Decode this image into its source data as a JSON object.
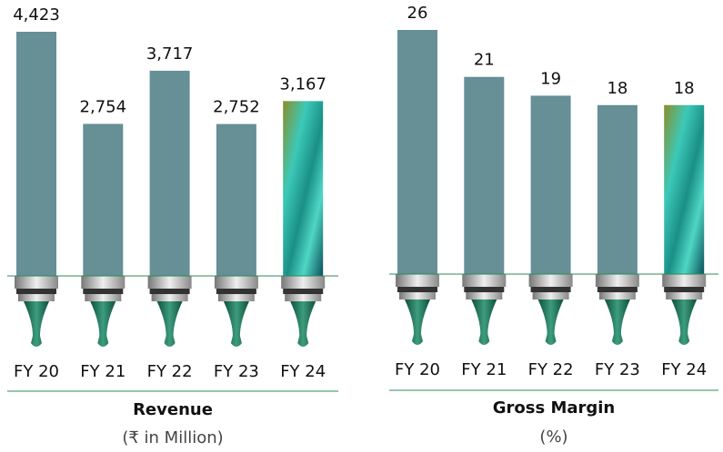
{
  "chart_data": [
    {
      "type": "bar",
      "title": "Revenue",
      "subtitle": "(₹ in Million)",
      "categories": [
        "FY 20",
        "FY 21",
        "FY 22",
        "FY 23",
        "FY 24"
      ],
      "values": [
        4423,
        2754,
        3717,
        2752,
        3167
      ],
      "value_labels": [
        "4,423",
        "2,754",
        "3,717",
        "2,752",
        "3,167"
      ],
      "color": "#668f96"
    },
    {
      "type": "bar",
      "title": "Gross Margin",
      "subtitle": "(%)",
      "categories": [
        "FY 20",
        "FY 21",
        "FY 22",
        "FY 23",
        "FY 24"
      ],
      "values": [
        26,
        21,
        19,
        18,
        18
      ],
      "color": "#668f96"
    }
  ]
}
